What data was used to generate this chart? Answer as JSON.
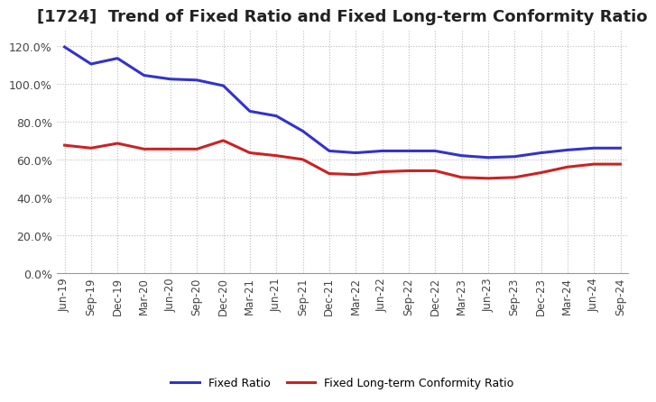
{
  "title": "[1724]  Trend of Fixed Ratio and Fixed Long-term Conformity Ratio",
  "x_labels": [
    "Jun-19",
    "Sep-19",
    "Dec-19",
    "Mar-20",
    "Jun-20",
    "Sep-20",
    "Dec-20",
    "Mar-21",
    "Jun-21",
    "Sep-21",
    "Dec-21",
    "Mar-22",
    "Jun-22",
    "Sep-22",
    "Dec-22",
    "Mar-23",
    "Jun-23",
    "Sep-23",
    "Dec-23",
    "Mar-24",
    "Jun-24",
    "Sep-24"
  ],
  "fixed_ratio": [
    119.5,
    110.5,
    113.5,
    104.5,
    102.5,
    102.0,
    99.0,
    85.5,
    83.0,
    75.0,
    64.5,
    63.5,
    64.5,
    64.5,
    64.5,
    62.0,
    61.0,
    61.5,
    63.5,
    65.0,
    66.0,
    66.0
  ],
  "fixed_lt_ratio": [
    67.5,
    66.0,
    68.5,
    65.5,
    65.5,
    65.5,
    70.0,
    63.5,
    62.0,
    60.0,
    52.5,
    52.0,
    53.5,
    54.0,
    54.0,
    50.5,
    50.0,
    50.5,
    53.0,
    56.0,
    57.5,
    57.5
  ],
  "fixed_ratio_color": "#3333CC",
  "fixed_lt_ratio_color": "#CC2222",
  "ylim": [
    0,
    128
  ],
  "yticks": [
    0,
    20,
    40,
    60,
    80,
    100,
    120
  ],
  "background_color": "#FFFFFF",
  "plot_bg_color": "#FFFFFF",
  "grid_color": "#BBBBBB",
  "legend_fixed_ratio": "Fixed Ratio",
  "legend_fixed_lt_ratio": "Fixed Long-term Conformity Ratio",
  "line_width": 2.2,
  "title_fontsize": 13,
  "tick_fontsize": 8.5,
  "ytick_fontsize": 9
}
